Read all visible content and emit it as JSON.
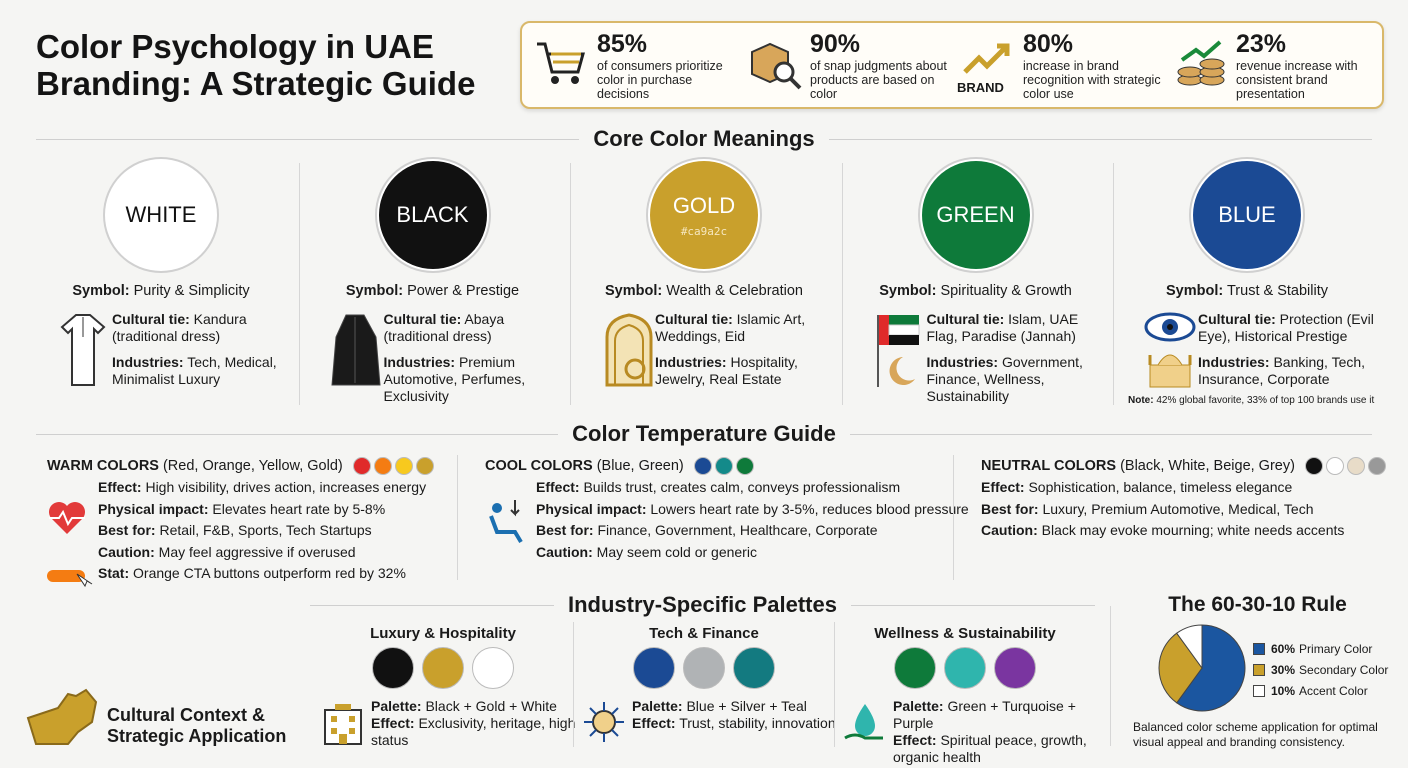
{
  "header": {
    "title": "Color Psychology in UAE Branding: A Strategic Guide"
  },
  "stats": [
    {
      "value": "85%",
      "text": "of consumers prioritize color in purchase decisions"
    },
    {
      "value": "90%",
      "text": "of snap judgments about products are based on color"
    },
    {
      "value": "80%",
      "text": "increase in brand recognition with strategic color use",
      "icon_label": "BRAND"
    },
    {
      "value": "23%",
      "text": "revenue increase with consistent brand presentation"
    }
  ],
  "core": {
    "title": "Core Color Meanings",
    "labels": {
      "symbol": "Symbol:",
      "cultural": "Cultural tie:",
      "industries": "Industries:"
    },
    "colors": [
      {
        "name": "WHITE",
        "color": "#ffffff",
        "text_color": "#111111",
        "symbol": "Purity & Simplicity",
        "cultural": "Kandura (traditional dress)",
        "industries": "Tech, Medical, Minimalist Luxury"
      },
      {
        "name": "BLACK",
        "color": "#111111",
        "text_color": "#ffffff",
        "symbol": "Power & Prestige",
        "cultural": "Abaya (traditional dress)",
        "industries": "Premium Automotive, Perfumes, Exclusivity"
      },
      {
        "name": "GOLD",
        "color": "#c9a02c",
        "text_color": "#ffffff",
        "hex": "#ca9a2c",
        "symbol": "Wealth & Celebration",
        "cultural": "Islamic Art, Weddings, Eid",
        "industries": "Hospitality, Jewelry, Real Estate"
      },
      {
        "name": "GREEN",
        "color": "#0e7a3a",
        "text_color": "#ffffff",
        "symbol": "Spirituality & Growth",
        "cultural": "Islam, UAE Flag, Paradise (Jannah)",
        "industries": "Government, Finance, Wellness, Sustainability"
      },
      {
        "name": "BLUE",
        "color": "#1b4a94",
        "text_color": "#ffffff",
        "symbol": "Trust & Stability",
        "cultural": "Protection (Evil Eye), Historical Prestige",
        "industries": "Banking, Tech, Insurance, Corporate",
        "note_label": "Note:",
        "note": "42% global favorite, 33% of top 100 brands use it"
      }
    ]
  },
  "temperature": {
    "title": "Color Temperature Guide",
    "groups": [
      {
        "title": "WARM COLORS",
        "sub": "(Red, Orange, Yellow, Gold)",
        "swatches": [
          "#e02a2a",
          "#f47c12",
          "#f7c91e",
          "#c9a02c"
        ],
        "rows": [
          {
            "label": "Effect:",
            "text": "High visibility, drives action, increases energy"
          },
          {
            "label": "Physical impact:",
            "text": "Elevates heart rate by 5-8%"
          },
          {
            "label": "Best for:",
            "text": "Retail, F&B, Sports, Tech Startups"
          },
          {
            "label": "Caution:",
            "text": "May feel aggressive if overused"
          },
          {
            "label": "Stat:",
            "text": "Orange CTA buttons outperform red by 32%"
          }
        ]
      },
      {
        "title": "COOL COLORS",
        "sub": "(Blue, Green)",
        "swatches": [
          "#1b4a94",
          "#138a8a",
          "#0e7a3a"
        ],
        "rows": [
          {
            "label": "Effect:",
            "text": "Builds trust, creates calm, conveys professionalism"
          },
          {
            "label": "Physical impact:",
            "text": "Lowers heart rate by 3-5%, reduces blood pressure"
          },
          {
            "label": "Best for:",
            "text": "Finance, Government, Healthcare, Corporate"
          },
          {
            "label": "Caution:",
            "text": "May seem cold or generic"
          }
        ]
      },
      {
        "title": "NEUTRAL COLORS",
        "sub": "(Black, White, Beige, Grey)",
        "swatches": [
          "#111111",
          "#ffffff",
          "#e8dcc8",
          "#999999"
        ],
        "rows": [
          {
            "label": "Effect:",
            "text": "Sophistication, balance, timeless elegance"
          },
          {
            "label": "Best for:",
            "text": "Luxury, Premium Automotive, Medical, Tech"
          },
          {
            "label": "Caution:",
            "text": "Black may evoke mourning; white needs accents"
          }
        ]
      }
    ]
  },
  "palettes": {
    "title": "Industry-Specific Palettes",
    "labels": {
      "palette": "Palette:",
      "effect": "Effect:"
    },
    "items": [
      {
        "title": "Luxury & Hospitality",
        "swatches": [
          "#111111",
          "#c9a02c",
          "#ffffff"
        ],
        "palette": "Black + Gold + White",
        "effect": "Exclusivity, heritage, high status"
      },
      {
        "title": "Tech & Finance",
        "swatches": [
          "#1b4a94",
          "#b0b3b5",
          "#137a80"
        ],
        "palette": "Blue + Silver + Teal",
        "effect": "Trust, stability, innovation"
      },
      {
        "title": "Wellness & Sustainability",
        "swatches": [
          "#0e7a3a",
          "#2fb5ad",
          "#7a35a0"
        ],
        "palette": "Green + Turquoise + Purple",
        "effect": "Spiritual peace, growth, organic health"
      }
    ]
  },
  "context": {
    "title": "Cultural Context & Strategic Application"
  },
  "rule": {
    "title": "The 60-30-10 Rule",
    "type": "pie",
    "slices": [
      {
        "value": 60,
        "label": "60%",
        "name": "Primary Color",
        "color": "#1b56a0"
      },
      {
        "value": 30,
        "label": "30%",
        "name": "Secondary Color",
        "color": "#c9a02c"
      },
      {
        "value": 10,
        "label": "10%",
        "name": "Accent Color",
        "color": "#ffffff"
      }
    ],
    "caption": "Balanced color scheme application for optimal visual appeal and branding consistency."
  }
}
